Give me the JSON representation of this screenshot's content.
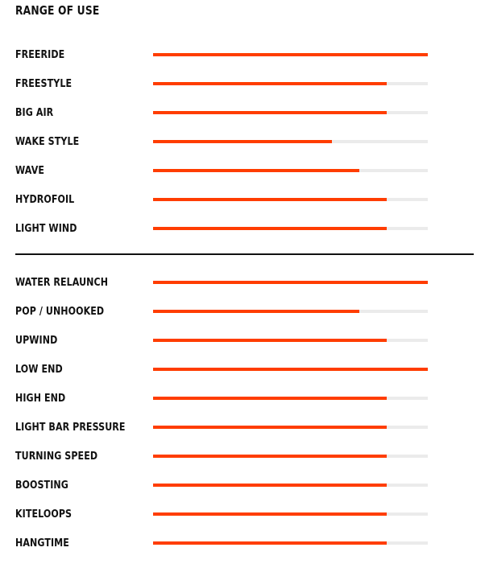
{
  "title": "RANGE OF USE",
  "colors": {
    "fill": "#ff3d00",
    "track": "#ebebeb",
    "divider": "#111111"
  },
  "chart_data": {
    "type": "bar",
    "orientation": "horizontal",
    "value_scale": "fraction of full bar",
    "xlim": [
      0,
      1
    ],
    "groups": [
      {
        "rows": [
          {
            "label": "FREERIDE",
            "value": 1.0
          },
          {
            "label": "FREESTYLE",
            "value": 0.85
          },
          {
            "label": "BIG AIR",
            "value": 0.85
          },
          {
            "label": "WAKE STYLE",
            "value": 0.65
          },
          {
            "label": "WAVE",
            "value": 0.75
          },
          {
            "label": "HYDROFOIL",
            "value": 0.85
          },
          {
            "label": "LIGHT WIND",
            "value": 0.85
          }
        ]
      },
      {
        "rows": [
          {
            "label": "WATER RELAUNCH",
            "value": 1.0
          },
          {
            "label": "POP / UNHOOKED",
            "value": 0.75
          },
          {
            "label": "UPWIND",
            "value": 0.85
          },
          {
            "label": "LOW END",
            "value": 1.0
          },
          {
            "label": "HIGH END",
            "value": 0.85
          },
          {
            "label": "LIGHT BAR PRESSURE",
            "value": 0.85
          },
          {
            "label": "TURNING SPEED",
            "value": 0.85
          },
          {
            "label": "BOOSTING",
            "value": 0.85
          },
          {
            "label": "KITELOOPS",
            "value": 0.85
          },
          {
            "label": "HANGTIME",
            "value": 0.85
          }
        ]
      }
    ]
  }
}
